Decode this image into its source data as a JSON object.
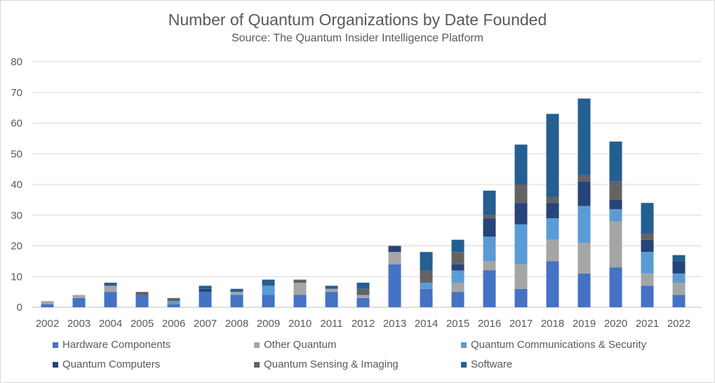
{
  "chart_data": {
    "type": "bar",
    "stacked": true,
    "title": "Number of Quantum Organizations by Date Founded",
    "subtitle": "Source: The Quantum Insider Intelligence Platform",
    "xlabel": "",
    "ylabel": "",
    "ylim": [
      0,
      80
    ],
    "yticks": [
      0,
      10,
      20,
      30,
      40,
      50,
      60,
      70,
      80
    ],
    "grid": true,
    "legend_position": "bottom",
    "categories": [
      "2002",
      "2003",
      "2004",
      "2005",
      "2006",
      "2007",
      "2008",
      "2009",
      "2010",
      "2011",
      "2012",
      "2013",
      "2014",
      "2015",
      "2016",
      "2017",
      "2018",
      "2019",
      "2020",
      "2021",
      "2022"
    ],
    "series": [
      {
        "name": "Hardware Components",
        "color": "#4472c4",
        "values": [
          1,
          3,
          5,
          4,
          1,
          5,
          4,
          4,
          4,
          5,
          3,
          14,
          6,
          5,
          12,
          6,
          15,
          11,
          13,
          7,
          4
        ]
      },
      {
        "name": "Other Quantum",
        "color": "#a5a5a5",
        "values": [
          1,
          1,
          2,
          0,
          0,
          0,
          1,
          0,
          4,
          1,
          1,
          4,
          0,
          3,
          3,
          8,
          7,
          10,
          15,
          4,
          4
        ]
      },
      {
        "name": "Quantum Communications & Security",
        "color": "#5b9bd5",
        "values": [
          0,
          0,
          0,
          0,
          1,
          0,
          0,
          3,
          0,
          0,
          0,
          0,
          2,
          4,
          8,
          13,
          7,
          12,
          4,
          7,
          3
        ]
      },
      {
        "name": "Quantum Computers",
        "color": "#264478",
        "values": [
          0,
          0,
          0,
          0,
          0,
          1,
          0,
          0,
          0,
          0,
          0,
          2,
          0,
          2,
          6,
          7,
          5,
          8,
          3,
          4,
          4
        ]
      },
      {
        "name": "Quantum Sensing & Imaging",
        "color": "#636363",
        "values": [
          0,
          0,
          0,
          1,
          1,
          0,
          0,
          0,
          1,
          0,
          2,
          0,
          4,
          4,
          1,
          6,
          2,
          2,
          6,
          2,
          0
        ]
      },
      {
        "name": "Software",
        "color": "#255e91",
        "values": [
          0,
          0,
          1,
          0,
          0,
          1,
          1,
          2,
          0,
          1,
          2,
          0,
          6,
          4,
          8,
          13,
          27,
          25,
          13,
          10,
          2
        ]
      }
    ]
  }
}
